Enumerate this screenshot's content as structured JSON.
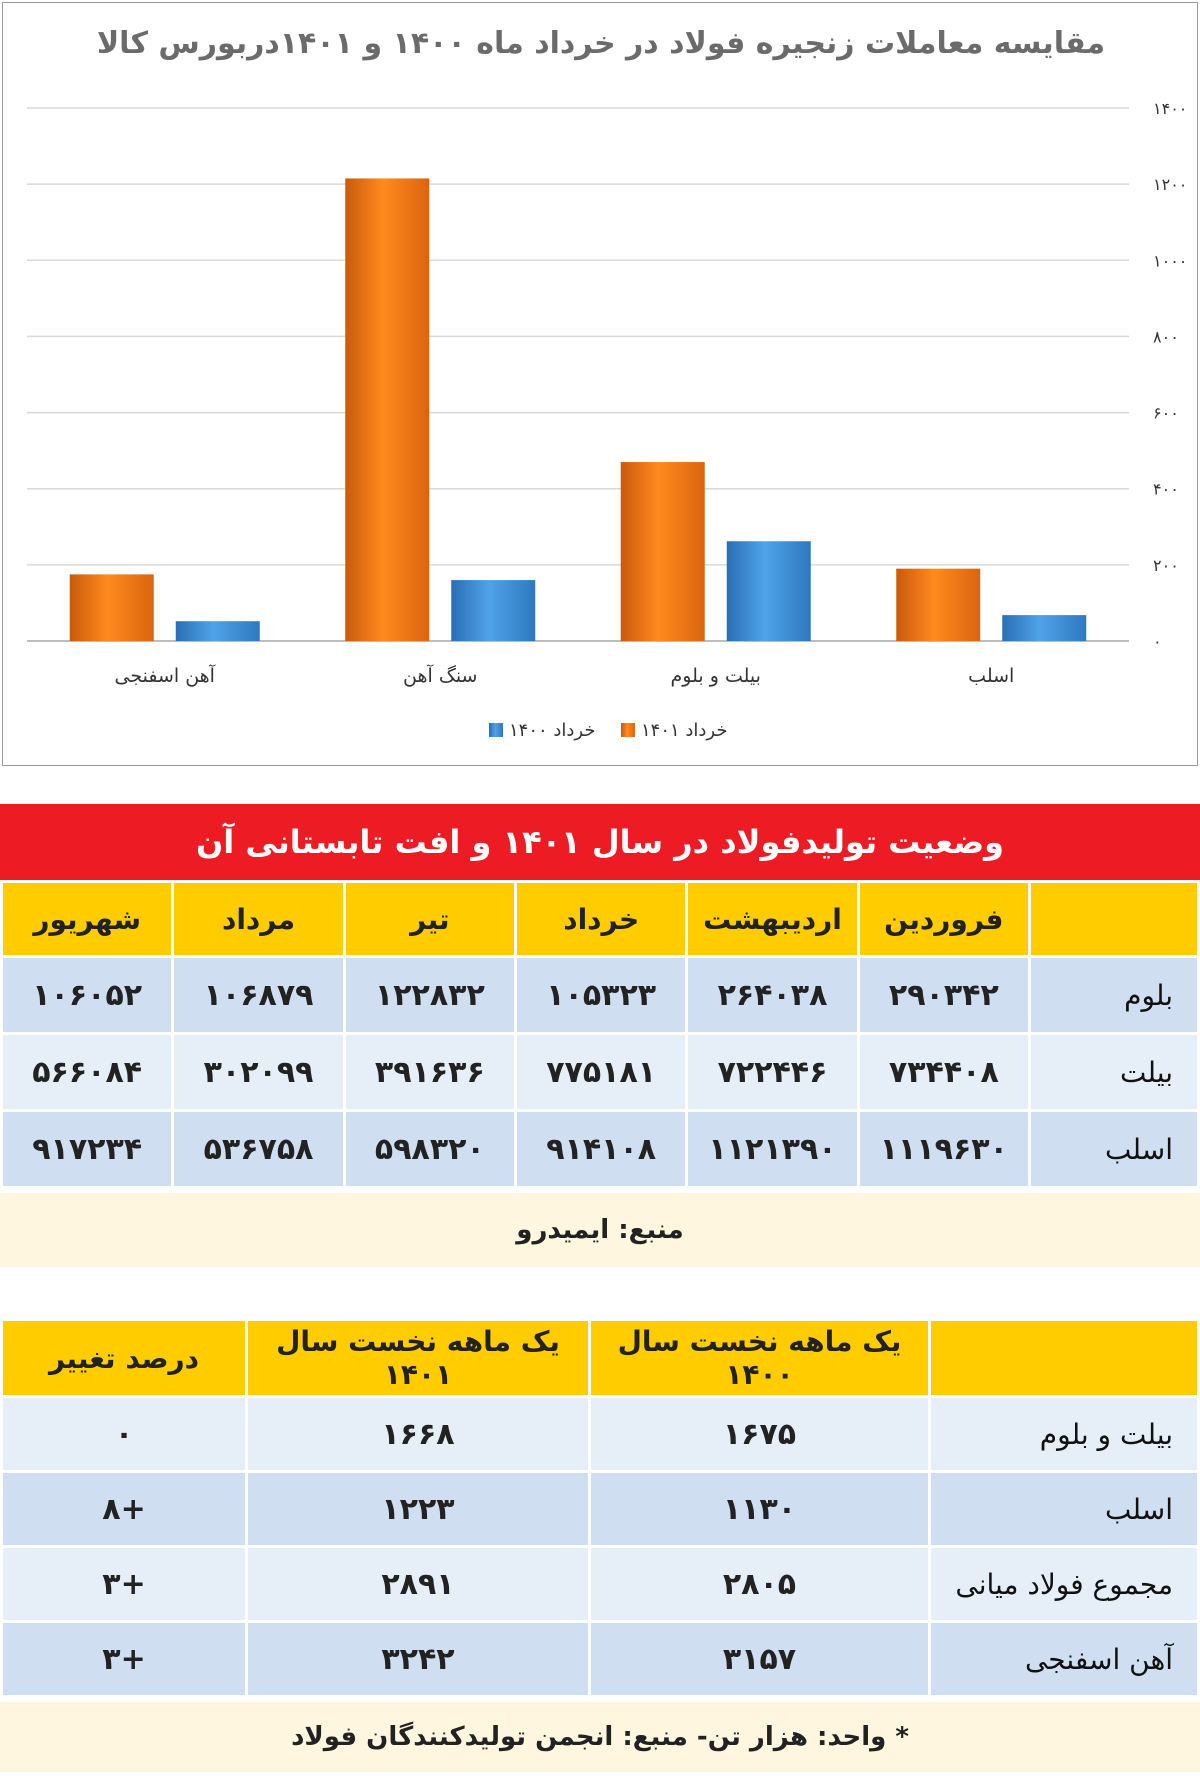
{
  "chart_data": {
    "type": "bar",
    "title": "مقایسه معاملات زنجیره فولاد در خرداد ماه ۱۴۰۰ و ۱۴۰۱دربورس کالا",
    "categories": [
      "آهن اسفنجی",
      "سنگ آهن",
      "بیلت و بلوم",
      "اسلب"
    ],
    "series": [
      {
        "name": "خرداد ۱۴۰۱",
        "color": "#f07f1f",
        "values": [
          175,
          1215,
          470,
          190
        ]
      },
      {
        "name": "خرداد ۱۴۰۰",
        "color": "#3f8fd6",
        "values": [
          52,
          160,
          262,
          68
        ]
      }
    ],
    "ylim": [
      0,
      1400
    ],
    "yticks": [
      0,
      200,
      400,
      600,
      800,
      1000,
      1200,
      1400
    ],
    "ytick_labels": [
      "۰",
      "۲۰۰",
      "۴۰۰",
      "۶۰۰",
      "۸۰۰",
      "۱۰۰۰",
      "۱۲۰۰",
      "۱۴۰۰"
    ],
    "grid": true,
    "legend": "bottom"
  },
  "table1": {
    "title": "وضعیت تولیدفولاد در سال ۱۴۰۱ و افت تابستانی آن",
    "headers": [
      "فروردین",
      "اردیبهشت",
      "خرداد",
      "تیر",
      "مرداد",
      "شهریور"
    ],
    "rows": [
      {
        "label": "بلوم",
        "values": [
          "۲۹۰۳۴۲",
          "۲۶۴۰۳۸",
          "۱۰۵۳۲۳",
          "۱۲۲۸۳۲",
          "۱۰۶۸۷۹",
          "۱۰۶۰۵۲"
        ]
      },
      {
        "label": "بیلت",
        "values": [
          "۷۳۴۴۰۸",
          "۷۲۲۴۴۶",
          "۷۷۵۱۸۱",
          "۳۹۱۶۳۶",
          "۳۰۲۰۹۹",
          "۵۶۶۰۸۴"
        ]
      },
      {
        "label": "اسلب",
        "values": [
          "۱۱۱۹۶۳۰",
          "۱۱۲۱۳۹۰",
          "۹۱۴۱۰۸",
          "۵۹۸۳۲۰",
          "۵۳۶۷۵۸",
          "۹۱۷۲۳۴"
        ]
      }
    ],
    "source": "منبع: ایمیدرو"
  },
  "table2": {
    "headers": [
      "یک ماهه نخست سال ۱۴۰۰",
      "یک ماهه نخست سال ۱۴۰۱",
      "درصد تغییر"
    ],
    "rows": [
      {
        "label": "بیلت و بلوم",
        "values": [
          "۱۶۷۵",
          "۱۶۶۸",
          "۰"
        ]
      },
      {
        "label": "اسلب",
        "values": [
          "۱۱۳۰",
          "۱۲۲۳",
          "+۸"
        ]
      },
      {
        "label": "مجموع فولاد میانی",
        "values": [
          "۲۸۰۵",
          "۲۸۹۱",
          "+۳"
        ]
      },
      {
        "label": "آهن اسفنجی",
        "values": [
          "۳۱۵۷",
          "۳۲۴۲",
          "+۳"
        ]
      }
    ],
    "footnote": "* واحد: هزار تن- منبع: انجمن تولیدکنندگان فولاد"
  }
}
